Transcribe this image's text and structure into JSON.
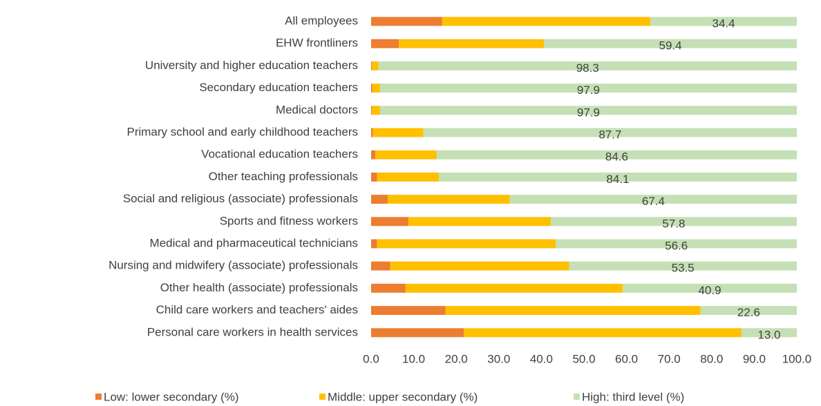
{
  "chart_data": {
    "type": "stacked_barh",
    "categories": [
      "All employees",
      "EHW frontliners",
      "University and higher education teachers",
      "Secondary education teachers",
      "Medical doctors",
      "Primary school and early childhood teachers",
      "Vocational education teachers",
      "Other teaching professionals",
      "Social and religious (associate) professionals",
      "Sports and fitness workers",
      "Medical and pharmaceutical technicians",
      "Nursing and midwifery (associate) professionals",
      "Other health (associate) professionals",
      "Child care workers and teachers' aides",
      "Personal care workers in health services"
    ],
    "series": [
      {
        "name": "Low: lower secondary (%)",
        "color": "#ed7d31",
        "values": [
          16.7,
          6.5,
          0.2,
          0.3,
          0.2,
          0.4,
          1.0,
          1.4,
          3.9,
          8.8,
          1.4,
          4.5,
          8.1,
          17.5,
          21.8
        ]
      },
      {
        "name": "Middle: upper secondary (%)",
        "color": "#ffc000",
        "values": [
          48.9,
          34.1,
          1.5,
          1.8,
          1.9,
          11.9,
          14.4,
          14.5,
          28.7,
          33.4,
          42.0,
          42.0,
          51.0,
          59.9,
          65.2
        ]
      },
      {
        "name": "High: third level (%)",
        "color": "#c5e0b4",
        "values": [
          34.4,
          59.4,
          98.3,
          97.9,
          97.9,
          87.7,
          84.6,
          84.1,
          67.4,
          57.8,
          56.6,
          53.5,
          40.9,
          22.6,
          13.0
        ],
        "value_labels": [
          "34.4",
          "59.4",
          "98.3",
          "97.9",
          "97.9",
          "87.7",
          "84.6",
          "84.1",
          "67.4",
          "57.8",
          "56.6",
          "53.5",
          "40.9",
          "22.6",
          "13.0"
        ]
      }
    ],
    "xlim": [
      0,
      100
    ],
    "xticks": [
      {
        "value": 0,
        "label": "0.0"
      },
      {
        "value": 10,
        "label": "10.0"
      },
      {
        "value": 20,
        "label": "20.0"
      },
      {
        "value": 30,
        "label": "30.0"
      },
      {
        "value": 40,
        "label": "40.0"
      },
      {
        "value": 50,
        "label": "50.0"
      },
      {
        "value": 60,
        "label": "60.0"
      },
      {
        "value": 70,
        "label": "70.0"
      },
      {
        "value": 80,
        "label": "80.0"
      },
      {
        "value": 90,
        "label": "90.0"
      },
      {
        "value": 100,
        "label": "100.0"
      }
    ],
    "legend": "bottom"
  }
}
